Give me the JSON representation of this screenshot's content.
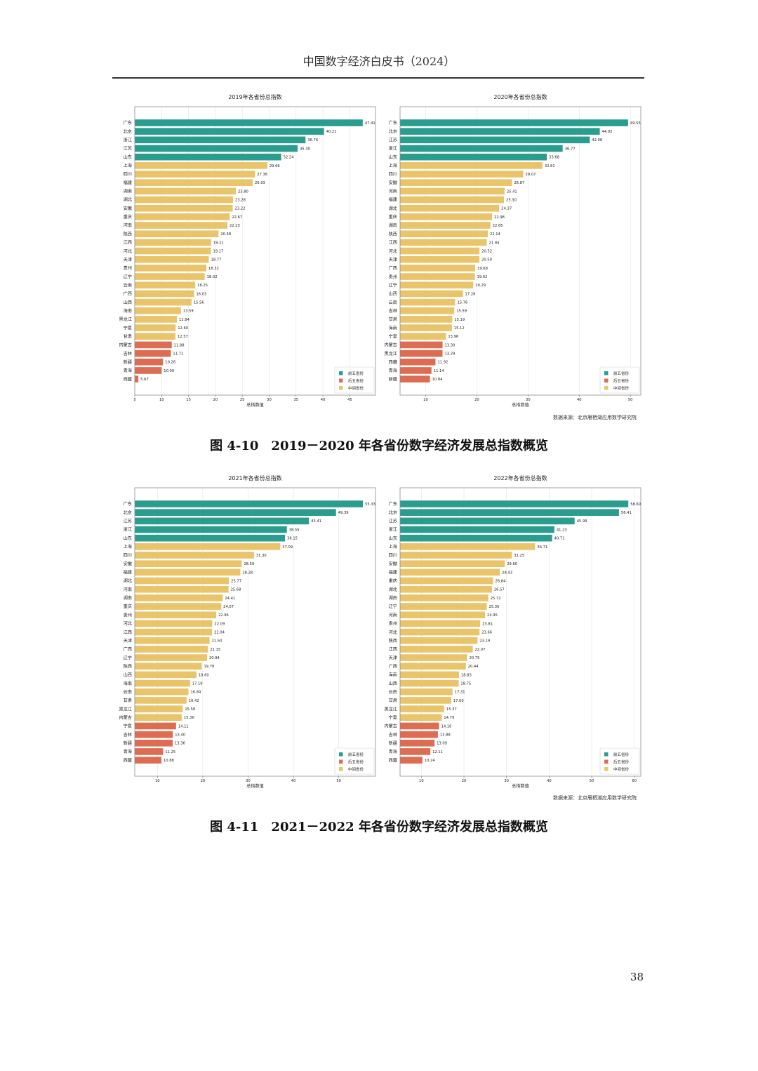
{
  "header": {
    "title": "中国数字经济白皮书（2024）"
  },
  "figures": [
    {
      "label": "图 4-10",
      "title": "2019－2020 年各省份数字经济发展总指数概览",
      "source": "数据来源：北京雁栖湖应用数学研究院"
    },
    {
      "label": "图 4-11",
      "title": "2021－2022 年各省份数字经济发展总指数概览",
      "source": "数据来源：北京雁栖湖应用数学研究院"
    }
  ],
  "page_number": "38",
  "chart_data": [
    {
      "type": "bar",
      "orientation": "horizontal",
      "title": "2019年各省份总指数",
      "xlabel": "总指数值",
      "xlim": [
        5,
        49.78
      ],
      "xticks": [
        5,
        10,
        15,
        20,
        25,
        30,
        35,
        40,
        45
      ],
      "legend": [
        {
          "label": "前五省份",
          "color": "#2a9d8f"
        },
        {
          "label": "后五省份",
          "color": "#dc6c52"
        },
        {
          "label": "中间省份",
          "color": "#e9c46a"
        }
      ],
      "categories": [
        "广东",
        "北京",
        "浙江",
        "江苏",
        "山东",
        "上海",
        "四川",
        "福建",
        "湖南",
        "湖北",
        "安徽",
        "重庆",
        "河南",
        "陕西",
        "江西",
        "河北",
        "天津",
        "贵州",
        "辽宁",
        "云南",
        "广西",
        "山西",
        "海南",
        "黑龙江",
        "宁夏",
        "甘肃",
        "内蒙古",
        "吉林",
        "新疆",
        "青海",
        "西藏"
      ],
      "values": [
        47.41,
        40.21,
        36.76,
        35.3,
        32.24,
        29.66,
        27.36,
        26.93,
        23.8,
        23.28,
        23.22,
        22.67,
        22.23,
        20.58,
        19.21,
        19.17,
        18.77,
        18.32,
        18.02,
        16.25,
        16.03,
        15.56,
        13.59,
        12.84,
        12.6,
        12.57,
        11.88,
        11.71,
        10.26,
        10.0,
        5.67
      ]
    },
    {
      "type": "bar",
      "orientation": "horizontal",
      "title": "2020年各省份总指数",
      "xlabel": "总指数值",
      "xlim": [
        5,
        52.03
      ],
      "xticks": [
        10,
        20,
        30,
        40,
        50
      ],
      "legend": [
        {
          "label": "前五省份",
          "color": "#2a9d8f"
        },
        {
          "label": "后五省份",
          "color": "#dc6c52"
        },
        {
          "label": "中间省份",
          "color": "#e9c46a"
        }
      ],
      "categories": [
        "广东",
        "北京",
        "江苏",
        "浙江",
        "山东",
        "上海",
        "四川",
        "安徽",
        "河南",
        "福建",
        "湖北",
        "重庆",
        "湖南",
        "陕西",
        "江西",
        "河北",
        "天津",
        "广西",
        "贵州",
        "辽宁",
        "山西",
        "云南",
        "吉林",
        "甘肃",
        "海南",
        "宁夏",
        "内蒙古",
        "黑龙江",
        "西藏",
        "青海",
        "新疆"
      ],
      "values": [
        49.55,
        44.02,
        42.06,
        36.77,
        33.68,
        32.81,
        29.07,
        26.87,
        25.41,
        25.3,
        24.37,
        22.98,
        22.65,
        22.14,
        21.94,
        20.52,
        20.5,
        19.68,
        19.62,
        19.29,
        17.28,
        15.76,
        15.59,
        15.19,
        15.12,
        13.96,
        13.3,
        13.29,
        11.92,
        11.14,
        10.84
      ]
    },
    {
      "type": "bar",
      "orientation": "horizontal",
      "title": "2021年各省份总指数",
      "xlabel": "总指数值",
      "xlim": [
        5,
        58.1
      ],
      "xticks": [
        10,
        20,
        30,
        40,
        50
      ],
      "legend": [
        {
          "label": "前五省份",
          "color": "#2a9d8f"
        },
        {
          "label": "后五省份",
          "color": "#dc6c52"
        },
        {
          "label": "中间省份",
          "color": "#e9c46a"
        }
      ],
      "categories": [
        "广东",
        "北京",
        "江苏",
        "浙江",
        "山东",
        "上海",
        "四川",
        "安徽",
        "福建",
        "湖北",
        "河南",
        "湖南",
        "重庆",
        "贵州",
        "河北",
        "江西",
        "天津",
        "广西",
        "辽宁",
        "陕西",
        "山西",
        "海南",
        "云南",
        "甘肃",
        "黑龙江",
        "内蒙古",
        "宁夏",
        "吉林",
        "新疆",
        "青海",
        "西藏"
      ],
      "values": [
        55.33,
        49.39,
        43.41,
        38.55,
        38.15,
        37.09,
        31.3,
        28.59,
        28.28,
        25.77,
        25.68,
        24.41,
        24.07,
        22.96,
        22.09,
        22.04,
        21.5,
        21.15,
        20.94,
        19.78,
        18.6,
        17.19,
        16.84,
        16.42,
        15.58,
        15.36,
        14.11,
        13.4,
        13.36,
        11.25,
        10.88
      ]
    },
    {
      "type": "bar",
      "orientation": "horizontal",
      "title": "2022年各省份总指数",
      "xlabel": "总指数值",
      "xlim": [
        5,
        61.53
      ],
      "xticks": [
        10,
        20,
        30,
        40,
        50,
        60
      ],
      "legend": [
        {
          "label": "前五省份",
          "color": "#2a9d8f"
        },
        {
          "label": "后五省份",
          "color": "#dc6c52"
        },
        {
          "label": "中间省份",
          "color": "#e9c46a"
        }
      ],
      "categories": [
        "广东",
        "北京",
        "江苏",
        "浙江",
        "山东",
        "上海",
        "四川",
        "安徽",
        "福建",
        "重庆",
        "湖北",
        "湖南",
        "辽宁",
        "河南",
        "贵州",
        "河北",
        "陕西",
        "江西",
        "天津",
        "广西",
        "海南",
        "山西",
        "云南",
        "甘肃",
        "黑龙江",
        "宁夏",
        "内蒙古",
        "吉林",
        "新疆",
        "青海",
        "西藏"
      ],
      "values": [
        58.6,
        56.41,
        45.99,
        41.23,
        40.71,
        36.71,
        31.25,
        29.6,
        28.43,
        26.84,
        26.57,
        25.72,
        25.36,
        24.95,
        23.81,
        23.66,
        23.19,
        22.07,
        20.75,
        20.44,
        18.83,
        18.75,
        17.31,
        17.0,
        15.37,
        14.79,
        14.16,
        13.88,
        13.09,
        12.11,
        10.24
      ]
    }
  ]
}
